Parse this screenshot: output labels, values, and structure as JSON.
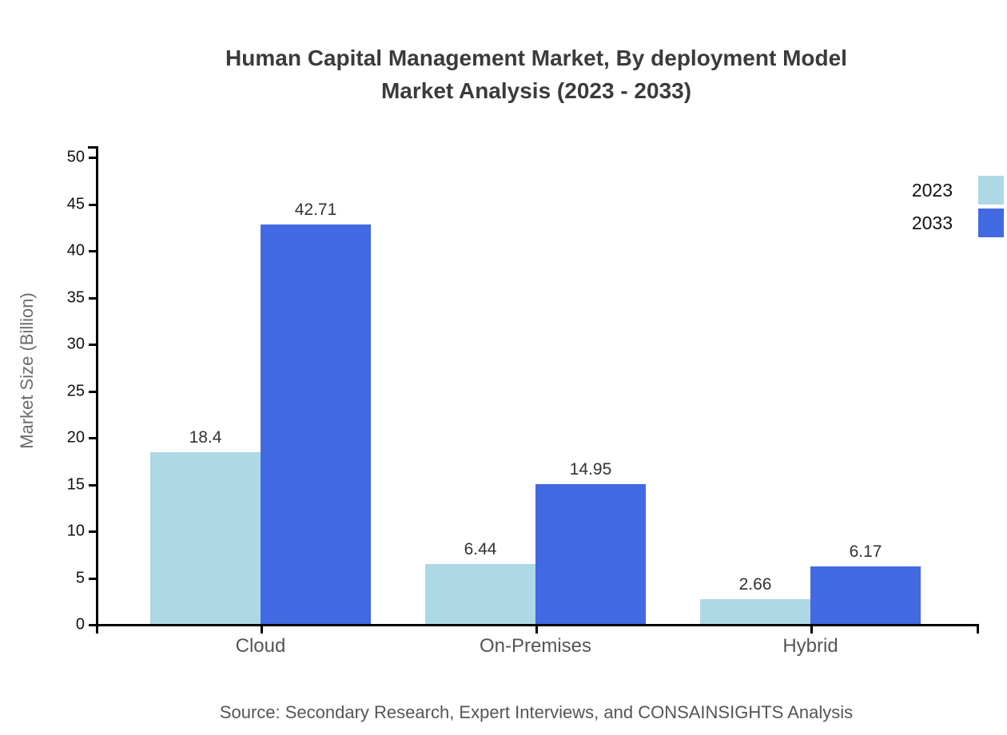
{
  "title": {
    "line1": "Human Capital Management Market, By deployment Model",
    "line2": "Market Analysis (2023 - 2033)"
  },
  "source": "Source: Secondary Research, Expert Interviews, and CONSAINSIGHTS Analysis",
  "chart_data": {
    "type": "bar",
    "title": "Human Capital Management Market, By deployment Model Market Analysis (2023 - 2033)",
    "categories": [
      "Cloud",
      "On-Premises",
      "Hybrid"
    ],
    "series": [
      {
        "name": "2023",
        "color": "#ADD8E6",
        "values": [
          18.4,
          6.44,
          2.66
        ]
      },
      {
        "name": "2033",
        "color": "#4169E1",
        "values": [
          42.71,
          14.95,
          6.17
        ]
      }
    ],
    "xlabel": "",
    "ylabel": "Market Size (Billion)",
    "ylim": [
      0,
      50
    ],
    "y_ticks": [
      0,
      5,
      10,
      15,
      20,
      25,
      30,
      35,
      40,
      45,
      50
    ],
    "grid": false,
    "legend_position": "top-right",
    "bar_value_labels": true
  },
  "colors": {
    "axis": "#000000",
    "tick_label": "#111111",
    "category_label": "#555555",
    "value_label": "#333333",
    "title": "#3b3b3b",
    "source": "#555555",
    "background": "#ffffff"
  }
}
